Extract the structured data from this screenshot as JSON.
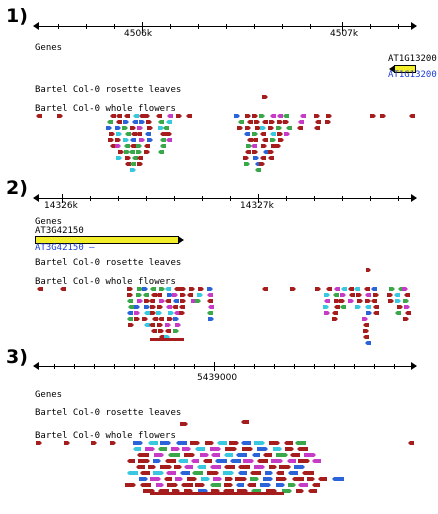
{
  "panels": [
    {
      "label": "1)",
      "ticks": [
        "4506k",
        "4507k"
      ],
      "gene_track": "Genes",
      "gene": {
        "name": "AT1G13200",
        "alias": "AT1G13200",
        "strand": "-"
      },
      "tracks": [
        "Bartel Col-0 rosette leaves",
        "Bartel Col-0 whole flowers"
      ]
    },
    {
      "label": "2)",
      "ticks": [
        "14326k",
        "14327k"
      ],
      "gene_track": "Genes",
      "gene": {
        "name": "AT3G42150",
        "alias": "AT3G42150 –",
        "strand": "+"
      },
      "tracks": [
        "Bartel Col-0 rosette leaves",
        "Bartel Col-0 whole flowers"
      ]
    },
    {
      "label": "3)",
      "ticks": [
        "5439000"
      ],
      "gene_track": "Genes",
      "tracks": [
        "Bartel Col-0 rosette leaves",
        "Bartel Col-0 whole flowers"
      ]
    }
  ],
  "colors": {
    "read_primary": "#a51d1d",
    "read_green": "#3aa84a",
    "read_blue": "#2a64d8",
    "read_magenta": "#c63cc6",
    "read_cyan": "#38c8e0",
    "gene_fill": "#f2ef2a",
    "alias_text": "#1b3cd6"
  }
}
